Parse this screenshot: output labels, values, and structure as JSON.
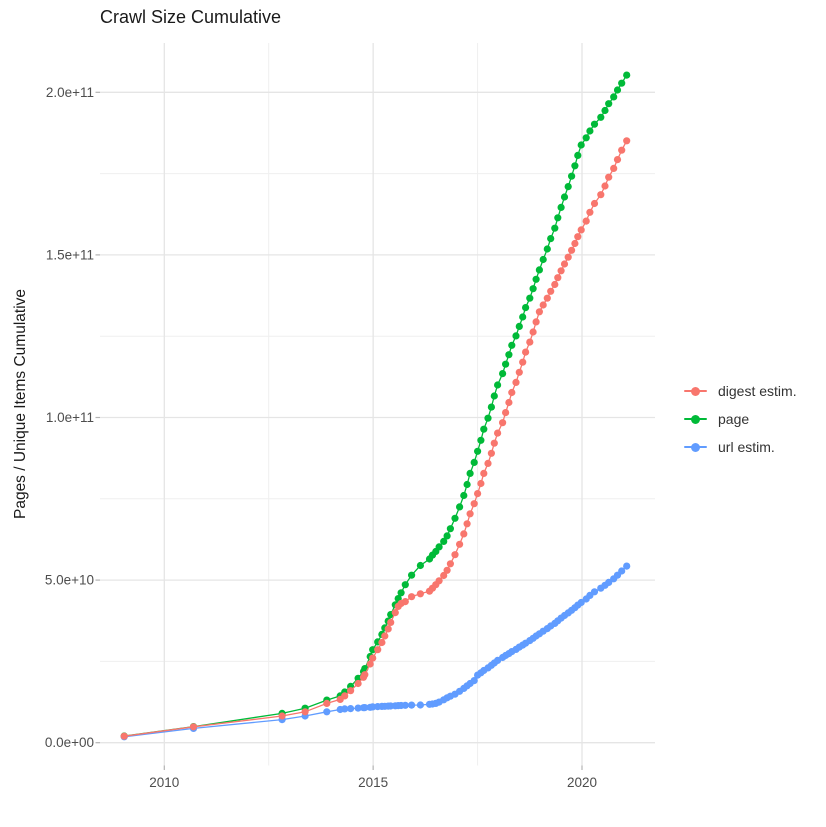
{
  "title": "Crawl Size Cumulative",
  "y_axis": {
    "title": "Pages / Unique Items Cumulative",
    "tick_labels": [
      "0.0e+00",
      "5.0e+10",
      "1.0e+11",
      "1.5e+11",
      "2.0e+11"
    ]
  },
  "x_axis": {
    "tick_labels": [
      "2010",
      "2015",
      "2020"
    ]
  },
  "legend": {
    "items": [
      {
        "label": "digest estim.",
        "color": "#F8766D"
      },
      {
        "label": "page",
        "color": "#00BA38"
      },
      {
        "label": "url estim.",
        "color": "#619CFF"
      }
    ]
  },
  "colors": {
    "digest": "#F8766D",
    "page": "#00BA38",
    "url": "#619CFF",
    "grid_major": "#E5E5E5",
    "grid_minor": "#EFEFEF",
    "axis_text": "#4D4D4D",
    "tick_mark": "#B3B3B3",
    "title_text": "#1A1A1A"
  },
  "chart_data": {
    "type": "line",
    "title": "Crawl Size Cumulative",
    "xlabel": "",
    "ylabel": "Pages / Unique Items Cumulative",
    "x_unit": "year (decimal)",
    "y_unit": "count (billions of items, value × 1e9)",
    "xlim": [
      2008.44,
      2021.67
    ],
    "ylim_billions": [
      -8.5,
      215.5
    ],
    "x_ticks": [
      2010,
      2015,
      2020
    ],
    "x_minor_ticks": [
      2012.5,
      2017.5
    ],
    "y_tick_values_billions": [
      0,
      50,
      100,
      150,
      200
    ],
    "y_tick_labels": [
      "0.0e+00",
      "5.0e+10",
      "1.0e+11",
      "1.5e+11",
      "2.0e+11"
    ],
    "y_minor_values_billions": [
      25,
      75,
      125,
      175
    ],
    "grid": "major+minor",
    "legend_position": "right",
    "marker": "point",
    "series": [
      {
        "name": "page",
        "color": "#00BA38",
        "points": [
          [
            2009.04,
            2.05
          ],
          [
            2010.7,
            4.95
          ],
          [
            2012.82,
            9.0
          ],
          [
            2013.37,
            10.6
          ],
          [
            2013.89,
            13.1
          ],
          [
            2014.21,
            14.4
          ],
          [
            2014.32,
            15.6
          ],
          [
            2014.46,
            17.3
          ],
          [
            2014.64,
            19.8
          ],
          [
            2014.77,
            21.9
          ],
          [
            2014.8,
            22.8
          ],
          [
            2014.93,
            26.5
          ],
          [
            2014.99,
            28.6
          ],
          [
            2015.11,
            31.0
          ],
          [
            2015.21,
            33.3
          ],
          [
            2015.28,
            35.3
          ],
          [
            2015.36,
            37.4
          ],
          [
            2015.42,
            39.4
          ],
          [
            2015.53,
            42.4
          ],
          [
            2015.6,
            44.3
          ],
          [
            2015.67,
            46.1
          ],
          [
            2015.77,
            48.6
          ],
          [
            2015.92,
            51.5
          ],
          [
            2016.13,
            54.5
          ],
          [
            2016.35,
            56.5
          ],
          [
            2016.42,
            57.7
          ],
          [
            2016.5,
            58.8
          ],
          [
            2016.58,
            60.2
          ],
          [
            2016.69,
            61.9
          ],
          [
            2016.77,
            63.6
          ],
          [
            2016.85,
            65.8
          ],
          [
            2016.96,
            69.0
          ],
          [
            2017.07,
            72.5
          ],
          [
            2017.17,
            76.0
          ],
          [
            2017.25,
            79.4
          ],
          [
            2017.32,
            82.8
          ],
          [
            2017.42,
            86.2
          ],
          [
            2017.5,
            89.6
          ],
          [
            2017.58,
            93.0
          ],
          [
            2017.65,
            96.4
          ],
          [
            2017.75,
            99.8
          ],
          [
            2017.83,
            103.2
          ],
          [
            2017.9,
            106.6
          ],
          [
            2017.98,
            110.0
          ],
          [
            2018.1,
            113.5
          ],
          [
            2018.17,
            116.4
          ],
          [
            2018.25,
            119.3
          ],
          [
            2018.32,
            122.2
          ],
          [
            2018.42,
            125.1
          ],
          [
            2018.5,
            128.0
          ],
          [
            2018.58,
            130.9
          ],
          [
            2018.65,
            133.8
          ],
          [
            2018.75,
            136.7
          ],
          [
            2018.83,
            139.6
          ],
          [
            2018.9,
            142.5
          ],
          [
            2018.98,
            145.4
          ],
          [
            2019.07,
            148.6
          ],
          [
            2019.17,
            151.8
          ],
          [
            2019.25,
            155.0
          ],
          [
            2019.35,
            158.2
          ],
          [
            2019.42,
            161.4
          ],
          [
            2019.5,
            164.6
          ],
          [
            2019.58,
            167.8
          ],
          [
            2019.67,
            171.0
          ],
          [
            2019.75,
            174.2
          ],
          [
            2019.83,
            177.4
          ],
          [
            2019.9,
            180.6
          ],
          [
            2019.98,
            183.8
          ],
          [
            2020.1,
            186.0
          ],
          [
            2020.19,
            188.1
          ],
          [
            2020.3,
            190.2
          ],
          [
            2020.45,
            192.3
          ],
          [
            2020.55,
            194.4
          ],
          [
            2020.64,
            196.5
          ],
          [
            2020.76,
            198.6
          ],
          [
            2020.85,
            200.7
          ],
          [
            2020.95,
            202.8
          ],
          [
            2021.07,
            205.3
          ]
        ]
      },
      {
        "name": "url estim.",
        "color": "#619CFF",
        "points": [
          [
            2009.04,
            1.8
          ],
          [
            2010.7,
            4.4
          ],
          [
            2012.82,
            7.1
          ],
          [
            2013.37,
            8.2
          ],
          [
            2013.89,
            9.5
          ],
          [
            2014.21,
            10.2
          ],
          [
            2014.32,
            10.4
          ],
          [
            2014.46,
            10.5
          ],
          [
            2014.64,
            10.65
          ],
          [
            2014.77,
            10.75
          ],
          [
            2014.8,
            10.8
          ],
          [
            2014.93,
            10.9
          ],
          [
            2014.99,
            11.0
          ],
          [
            2015.11,
            11.1
          ],
          [
            2015.21,
            11.15
          ],
          [
            2015.28,
            11.2
          ],
          [
            2015.36,
            11.25
          ],
          [
            2015.42,
            11.3
          ],
          [
            2015.53,
            11.35
          ],
          [
            2015.6,
            11.4
          ],
          [
            2015.67,
            11.45
          ],
          [
            2015.77,
            11.5
          ],
          [
            2015.92,
            11.55
          ],
          [
            2016.13,
            11.6
          ],
          [
            2016.35,
            11.8
          ],
          [
            2016.42,
            11.9
          ],
          [
            2016.5,
            12.1
          ],
          [
            2016.58,
            12.5
          ],
          [
            2016.69,
            13.2
          ],
          [
            2016.77,
            13.8
          ],
          [
            2016.85,
            14.3
          ],
          [
            2016.96,
            14.9
          ],
          [
            2017.07,
            15.8
          ],
          [
            2017.17,
            16.7
          ],
          [
            2017.25,
            17.5
          ],
          [
            2017.32,
            18.2
          ],
          [
            2017.42,
            19.1
          ],
          [
            2017.5,
            20.8
          ],
          [
            2017.58,
            21.5
          ],
          [
            2017.65,
            22.2
          ],
          [
            2017.75,
            23.0
          ],
          [
            2017.83,
            23.8
          ],
          [
            2017.9,
            24.5
          ],
          [
            2017.98,
            25.3
          ],
          [
            2018.1,
            26.2
          ],
          [
            2018.17,
            26.8
          ],
          [
            2018.25,
            27.4
          ],
          [
            2018.32,
            28.0
          ],
          [
            2018.42,
            28.7
          ],
          [
            2018.5,
            29.4
          ],
          [
            2018.58,
            30.0
          ],
          [
            2018.65,
            30.6
          ],
          [
            2018.75,
            31.4
          ],
          [
            2018.83,
            32.1
          ],
          [
            2018.9,
            32.8
          ],
          [
            2018.98,
            33.5
          ],
          [
            2019.07,
            34.3
          ],
          [
            2019.17,
            35.1
          ],
          [
            2019.25,
            35.9
          ],
          [
            2019.35,
            36.7
          ],
          [
            2019.42,
            37.5
          ],
          [
            2019.5,
            38.3
          ],
          [
            2019.58,
            39.1
          ],
          [
            2019.67,
            39.9
          ],
          [
            2019.75,
            40.7
          ],
          [
            2019.83,
            41.5
          ],
          [
            2019.9,
            42.3
          ],
          [
            2019.98,
            43.1
          ],
          [
            2020.1,
            44.2
          ],
          [
            2020.19,
            45.3
          ],
          [
            2020.3,
            46.4
          ],
          [
            2020.45,
            47.5
          ],
          [
            2020.55,
            48.4
          ],
          [
            2020.64,
            49.3
          ],
          [
            2020.76,
            50.4
          ],
          [
            2020.85,
            51.5
          ],
          [
            2020.95,
            52.8
          ],
          [
            2021.07,
            54.3
          ]
        ]
      },
      {
        "name": "digest estim.",
        "color": "#F8766D",
        "points": [
          [
            2009.04,
            2.0
          ],
          [
            2010.7,
            4.9
          ],
          [
            2012.82,
            8.2
          ],
          [
            2013.37,
            9.5
          ],
          [
            2013.89,
            12.1
          ],
          [
            2014.21,
            13.3
          ],
          [
            2014.32,
            14.4
          ],
          [
            2014.46,
            16.0
          ],
          [
            2014.64,
            18.2
          ],
          [
            2014.77,
            20.1
          ],
          [
            2014.8,
            20.9
          ],
          [
            2014.93,
            24.2
          ],
          [
            2014.99,
            26.0
          ],
          [
            2015.11,
            28.6
          ],
          [
            2015.21,
            30.8
          ],
          [
            2015.28,
            32.8
          ],
          [
            2015.36,
            35.0
          ],
          [
            2015.42,
            37.0
          ],
          [
            2015.53,
            40.0
          ],
          [
            2015.6,
            41.9
          ],
          [
            2015.67,
            42.8
          ],
          [
            2015.77,
            43.4
          ],
          [
            2015.92,
            44.9
          ],
          [
            2016.13,
            45.8
          ],
          [
            2016.35,
            46.6
          ],
          [
            2016.42,
            47.5
          ],
          [
            2016.5,
            48.6
          ],
          [
            2016.58,
            49.8
          ],
          [
            2016.69,
            51.4
          ],
          [
            2016.77,
            53.0
          ],
          [
            2016.85,
            55.0
          ],
          [
            2016.96,
            57.8
          ],
          [
            2017.07,
            61.0
          ],
          [
            2017.17,
            64.2
          ],
          [
            2017.25,
            67.3
          ],
          [
            2017.32,
            70.4
          ],
          [
            2017.42,
            73.5
          ],
          [
            2017.5,
            76.6
          ],
          [
            2017.58,
            79.7
          ],
          [
            2017.65,
            82.8
          ],
          [
            2017.75,
            85.9
          ],
          [
            2017.83,
            89.0
          ],
          [
            2017.9,
            92.1
          ],
          [
            2017.98,
            95.2
          ],
          [
            2018.1,
            98.4
          ],
          [
            2018.17,
            101.5
          ],
          [
            2018.25,
            104.6
          ],
          [
            2018.32,
            107.7
          ],
          [
            2018.42,
            110.8
          ],
          [
            2018.5,
            113.9
          ],
          [
            2018.58,
            117.0
          ],
          [
            2018.65,
            120.1
          ],
          [
            2018.75,
            123.2
          ],
          [
            2018.83,
            126.3
          ],
          [
            2018.9,
            129.4
          ],
          [
            2018.98,
            132.5
          ],
          [
            2019.07,
            134.6
          ],
          [
            2019.17,
            136.7
          ],
          [
            2019.25,
            138.8
          ],
          [
            2019.35,
            140.9
          ],
          [
            2019.42,
            143.0
          ],
          [
            2019.5,
            145.1
          ],
          [
            2019.58,
            147.2
          ],
          [
            2019.67,
            149.3
          ],
          [
            2019.75,
            151.4
          ],
          [
            2019.83,
            153.5
          ],
          [
            2019.9,
            155.6
          ],
          [
            2019.98,
            157.7
          ],
          [
            2020.1,
            160.4
          ],
          [
            2020.19,
            163.1
          ],
          [
            2020.3,
            165.8
          ],
          [
            2020.45,
            168.5
          ],
          [
            2020.55,
            171.2
          ],
          [
            2020.64,
            173.9
          ],
          [
            2020.76,
            176.6
          ],
          [
            2020.85,
            179.3
          ],
          [
            2020.95,
            182.2
          ],
          [
            2021.07,
            185.1
          ]
        ]
      }
    ]
  }
}
